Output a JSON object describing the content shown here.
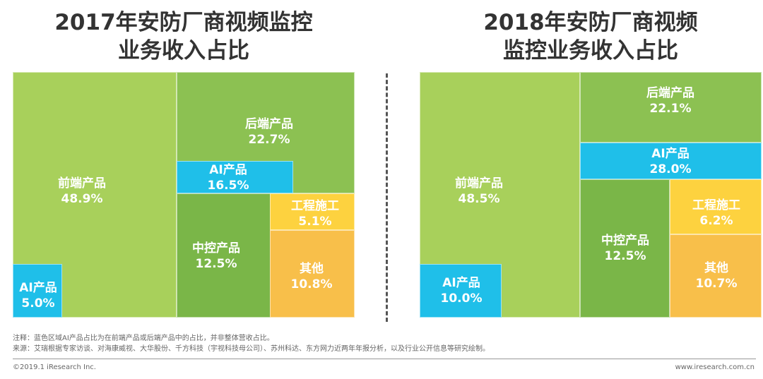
{
  "chart_data": [
    {
      "type": "treemap",
      "title_lines": [
        "2017年安防厂商视频监控",
        "业务收入占比"
      ],
      "segments": [
        {
          "name": "前端产品",
          "value": "48.9%",
          "color": "#A8D05B"
        },
        {
          "name": "后端产品",
          "value": "22.7%",
          "color": "#8CC152"
        },
        {
          "name": "中控产品",
          "value": "12.5%",
          "color": "#7AB648"
        },
        {
          "name": "工程施工",
          "value": "5.1%",
          "color": "#FDD23F"
        },
        {
          "name": "其他",
          "value": "10.8%",
          "color": "#F8BF4A"
        },
        {
          "name": "AI产品",
          "value": "16.5%",
          "color": "#1FBFE9"
        },
        {
          "name": "AI产品",
          "value": "5.0%",
          "color": "#1FBFE9"
        }
      ]
    },
    {
      "type": "treemap",
      "title_lines": [
        "2018年安防厂商视频",
        "监控业务收入占比"
      ],
      "segments": [
        {
          "name": "前端产品",
          "value": "48.5%",
          "color": "#A8D05B"
        },
        {
          "name": "后端产品",
          "value": "22.1%",
          "color": "#8CC152"
        },
        {
          "name": "中控产品",
          "value": "12.5%",
          "color": "#7AB648"
        },
        {
          "name": "工程施工",
          "value": "6.2%",
          "color": "#FDD23F"
        },
        {
          "name": "其他",
          "value": "10.7%",
          "color": "#F8BF4A"
        },
        {
          "name": "AI产品",
          "value": "28.0%",
          "color": "#1FBFE9"
        },
        {
          "name": "AI产品",
          "value": "10.0%",
          "color": "#1FBFE9"
        }
      ]
    }
  ],
  "notes": {
    "note1": "注释：蓝色区域AI产品占比为在前端产品或后端产品中的占比，并非整体营收占比。",
    "note2": "来源：艾瑞根据专家访谈、对海康威视、大华股份、千方科技（宇视科技母公司）、苏州科达、东方网力近两年年报分析，以及行业公开信息等研究绘制。"
  },
  "footer": {
    "copyright": "©2019.1 iResearch Inc.",
    "website": "www.iresearch.com.cn"
  }
}
